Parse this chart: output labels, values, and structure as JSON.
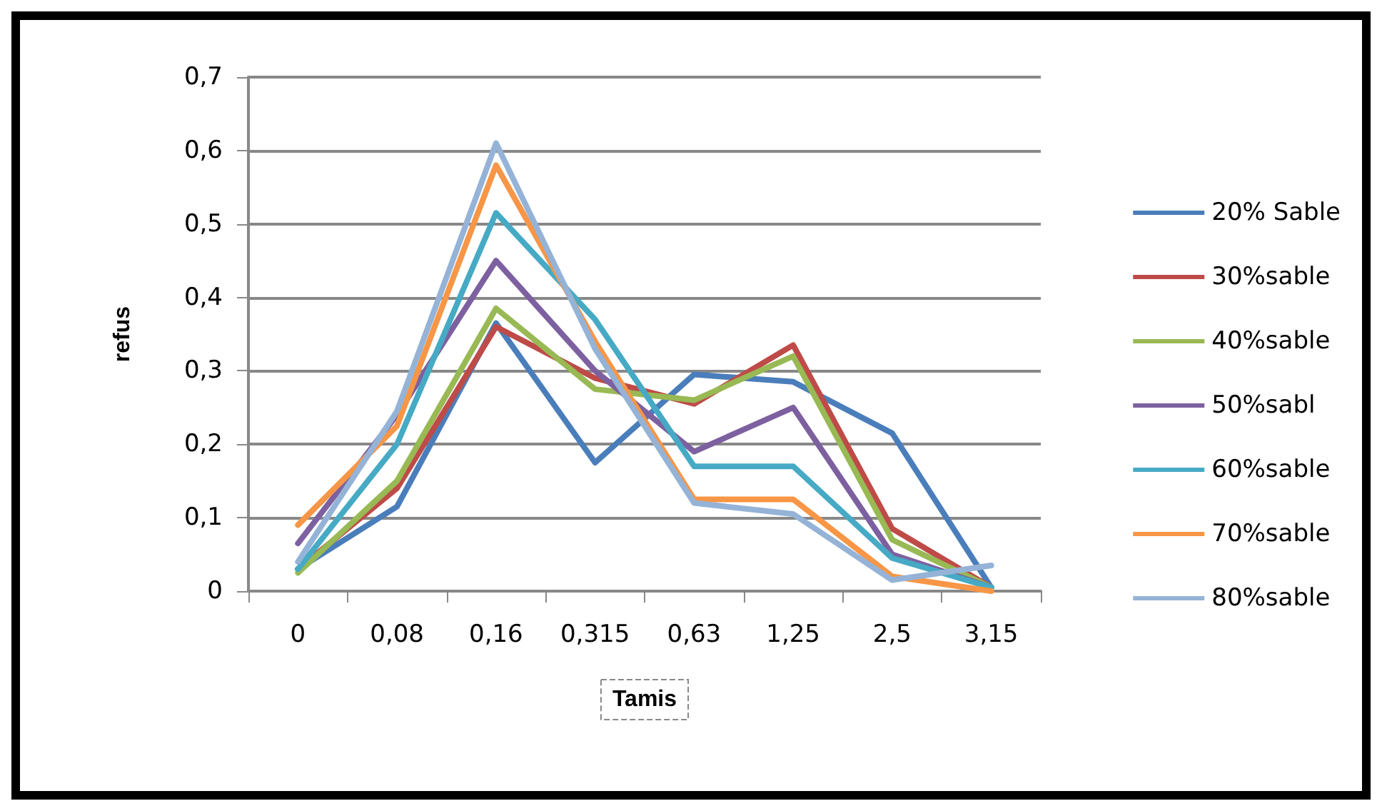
{
  "chart_data": {
    "type": "line",
    "xlabel": "Tamis",
    "ylabel": "refus",
    "categories": [
      "0",
      "0,08",
      "0,16",
      "0,315",
      "0,63",
      "1,25",
      "2,5",
      "3,15"
    ],
    "ylim": [
      0,
      0.7
    ],
    "yticks": [
      {
        "value": 0,
        "label": "0"
      },
      {
        "value": 0.1,
        "label": "0,1"
      },
      {
        "value": 0.2,
        "label": "0,2"
      },
      {
        "value": 0.3,
        "label": "0,3"
      },
      {
        "value": 0.4,
        "label": "0,4"
      },
      {
        "value": 0.5,
        "label": "0,5"
      },
      {
        "value": 0.6,
        "label": "0,6"
      },
      {
        "value": 0.7,
        "label": "0,7"
      }
    ],
    "grid": "y",
    "legend": "right",
    "marker": "none",
    "line_style": "solid",
    "series": [
      {
        "name": "20% Sable",
        "color": "#4a7ebb",
        "values": [
          0.03,
          0.115,
          0.365,
          0.175,
          0.295,
          0.285,
          0.215,
          0.005
        ]
      },
      {
        "name": "30%sable",
        "color": "#be4b48",
        "values": [
          0.03,
          0.14,
          0.36,
          0.29,
          0.255,
          0.335,
          0.085,
          0.005
        ]
      },
      {
        "name": "40%sable",
        "color": "#98b954",
        "values": [
          0.025,
          0.15,
          0.385,
          0.275,
          0.26,
          0.32,
          0.07,
          0.005
        ]
      },
      {
        "name": "50%sabl",
        "color": "#7d60a0",
        "values": [
          0.065,
          0.24,
          0.45,
          0.3,
          0.19,
          0.25,
          0.05,
          0.005
        ]
      },
      {
        "name": "60%sable",
        "color": "#46aac5",
        "values": [
          0.03,
          0.2,
          0.515,
          0.37,
          0.17,
          0.17,
          0.045,
          0.005
        ]
      },
      {
        "name": "70%sable",
        "color": "#f79646",
        "values": [
          0.09,
          0.225,
          0.58,
          0.34,
          0.125,
          0.125,
          0.02,
          0
        ]
      },
      {
        "name": "80%sable",
        "color": "#95b3d7",
        "values": [
          0.04,
          0.245,
          0.61,
          0.33,
          0.12,
          0.105,
          0.015,
          0.035
        ]
      }
    ]
  }
}
